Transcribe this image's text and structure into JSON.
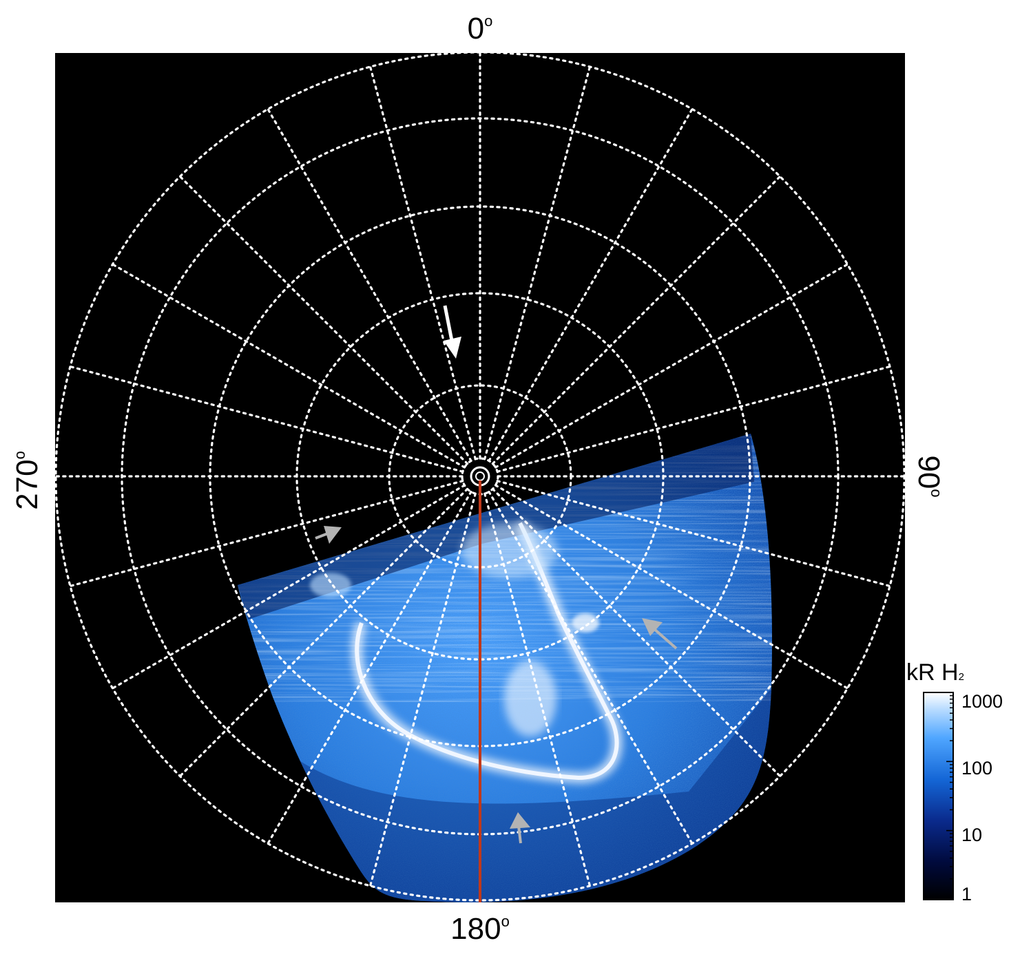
{
  "labels": {
    "top": "0",
    "bottom": "180",
    "left": "270",
    "right": "90",
    "degree_symbol": "o"
  },
  "colorbar": {
    "title_main": "kR H",
    "title_sub": "2",
    "ticks": [
      "1000",
      "100",
      "10",
      "1"
    ],
    "scale": "log",
    "range": [
      1,
      1000
    ],
    "colors": [
      "#000000",
      "#00106a",
      "#0a3fb3",
      "#1a7fe6",
      "#66b7ff",
      "#ffffff"
    ]
  },
  "colors": {
    "background": "#000000",
    "grid": "#ffffff",
    "meridian_line": "#c0391b",
    "aurora_bright": "#ffffff",
    "aurora_mid": "#3d8fe8",
    "aurora_dark": "#0b3c99",
    "arrow_white": "#ffffff",
    "arrow_grey": "#b3b3b3"
  },
  "grid": {
    "meridian_step_deg": 15,
    "parallel_count": 5,
    "style": "dotted"
  },
  "annotations": [
    {
      "name": "arrow-white-north",
      "color": "white"
    },
    {
      "name": "arrow-grey-left",
      "color": "grey"
    },
    {
      "name": "arrow-grey-right",
      "color": "grey"
    },
    {
      "name": "arrow-grey-bottom",
      "color": "grey"
    }
  ]
}
